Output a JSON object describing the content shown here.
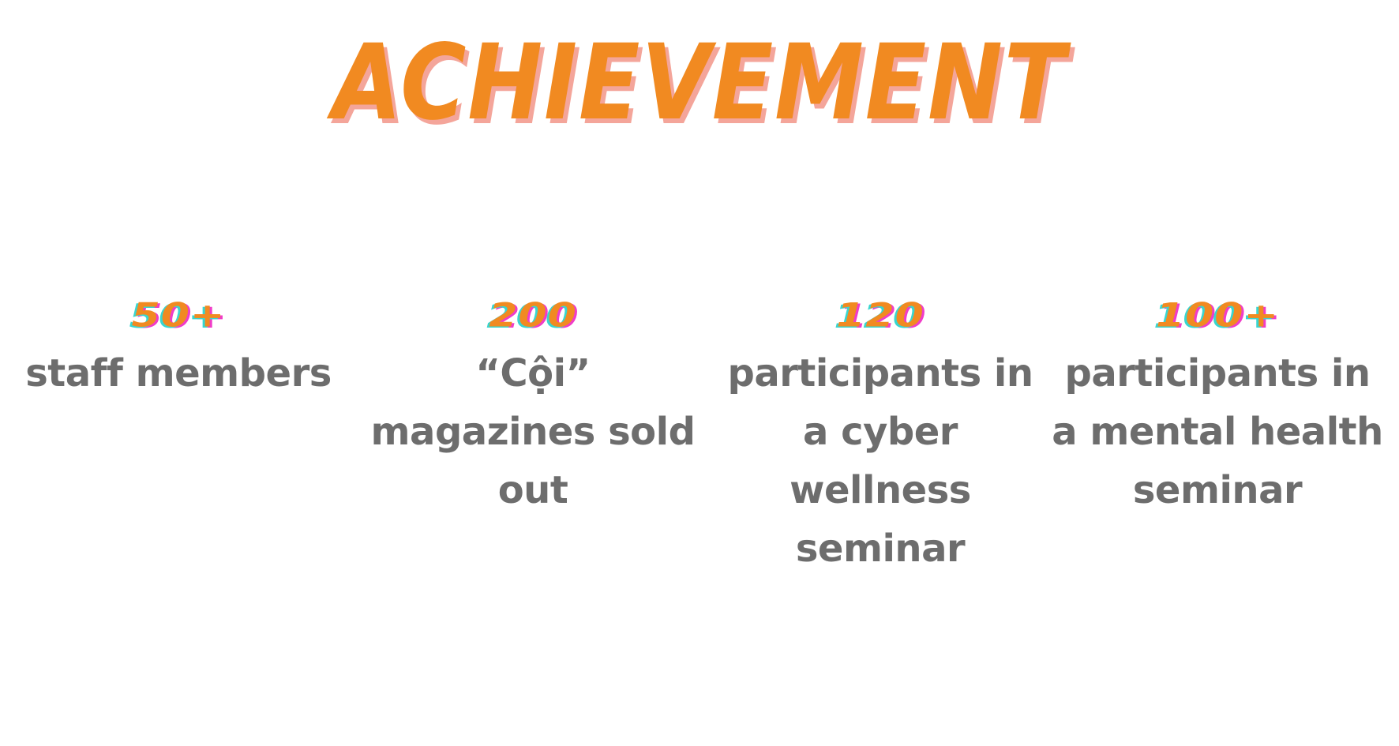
{
  "title": "ACHIEVEMENT",
  "colors": {
    "accent": "#f18a21",
    "title_shadow": "#f4a59a",
    "number_shadow_pink": "#f03cc8",
    "number_shadow_cyan": "#38d6d0",
    "label_text": "#6d6d6d"
  },
  "stats": [
    {
      "number": "50+",
      "label": "staff members"
    },
    {
      "number": "200",
      "label": "“Cội” magazines sold out"
    },
    {
      "number": "120",
      "label": "participants in a cyber wellness seminar"
    },
    {
      "number": "100+",
      "label": "participants in a mental health seminar"
    }
  ]
}
